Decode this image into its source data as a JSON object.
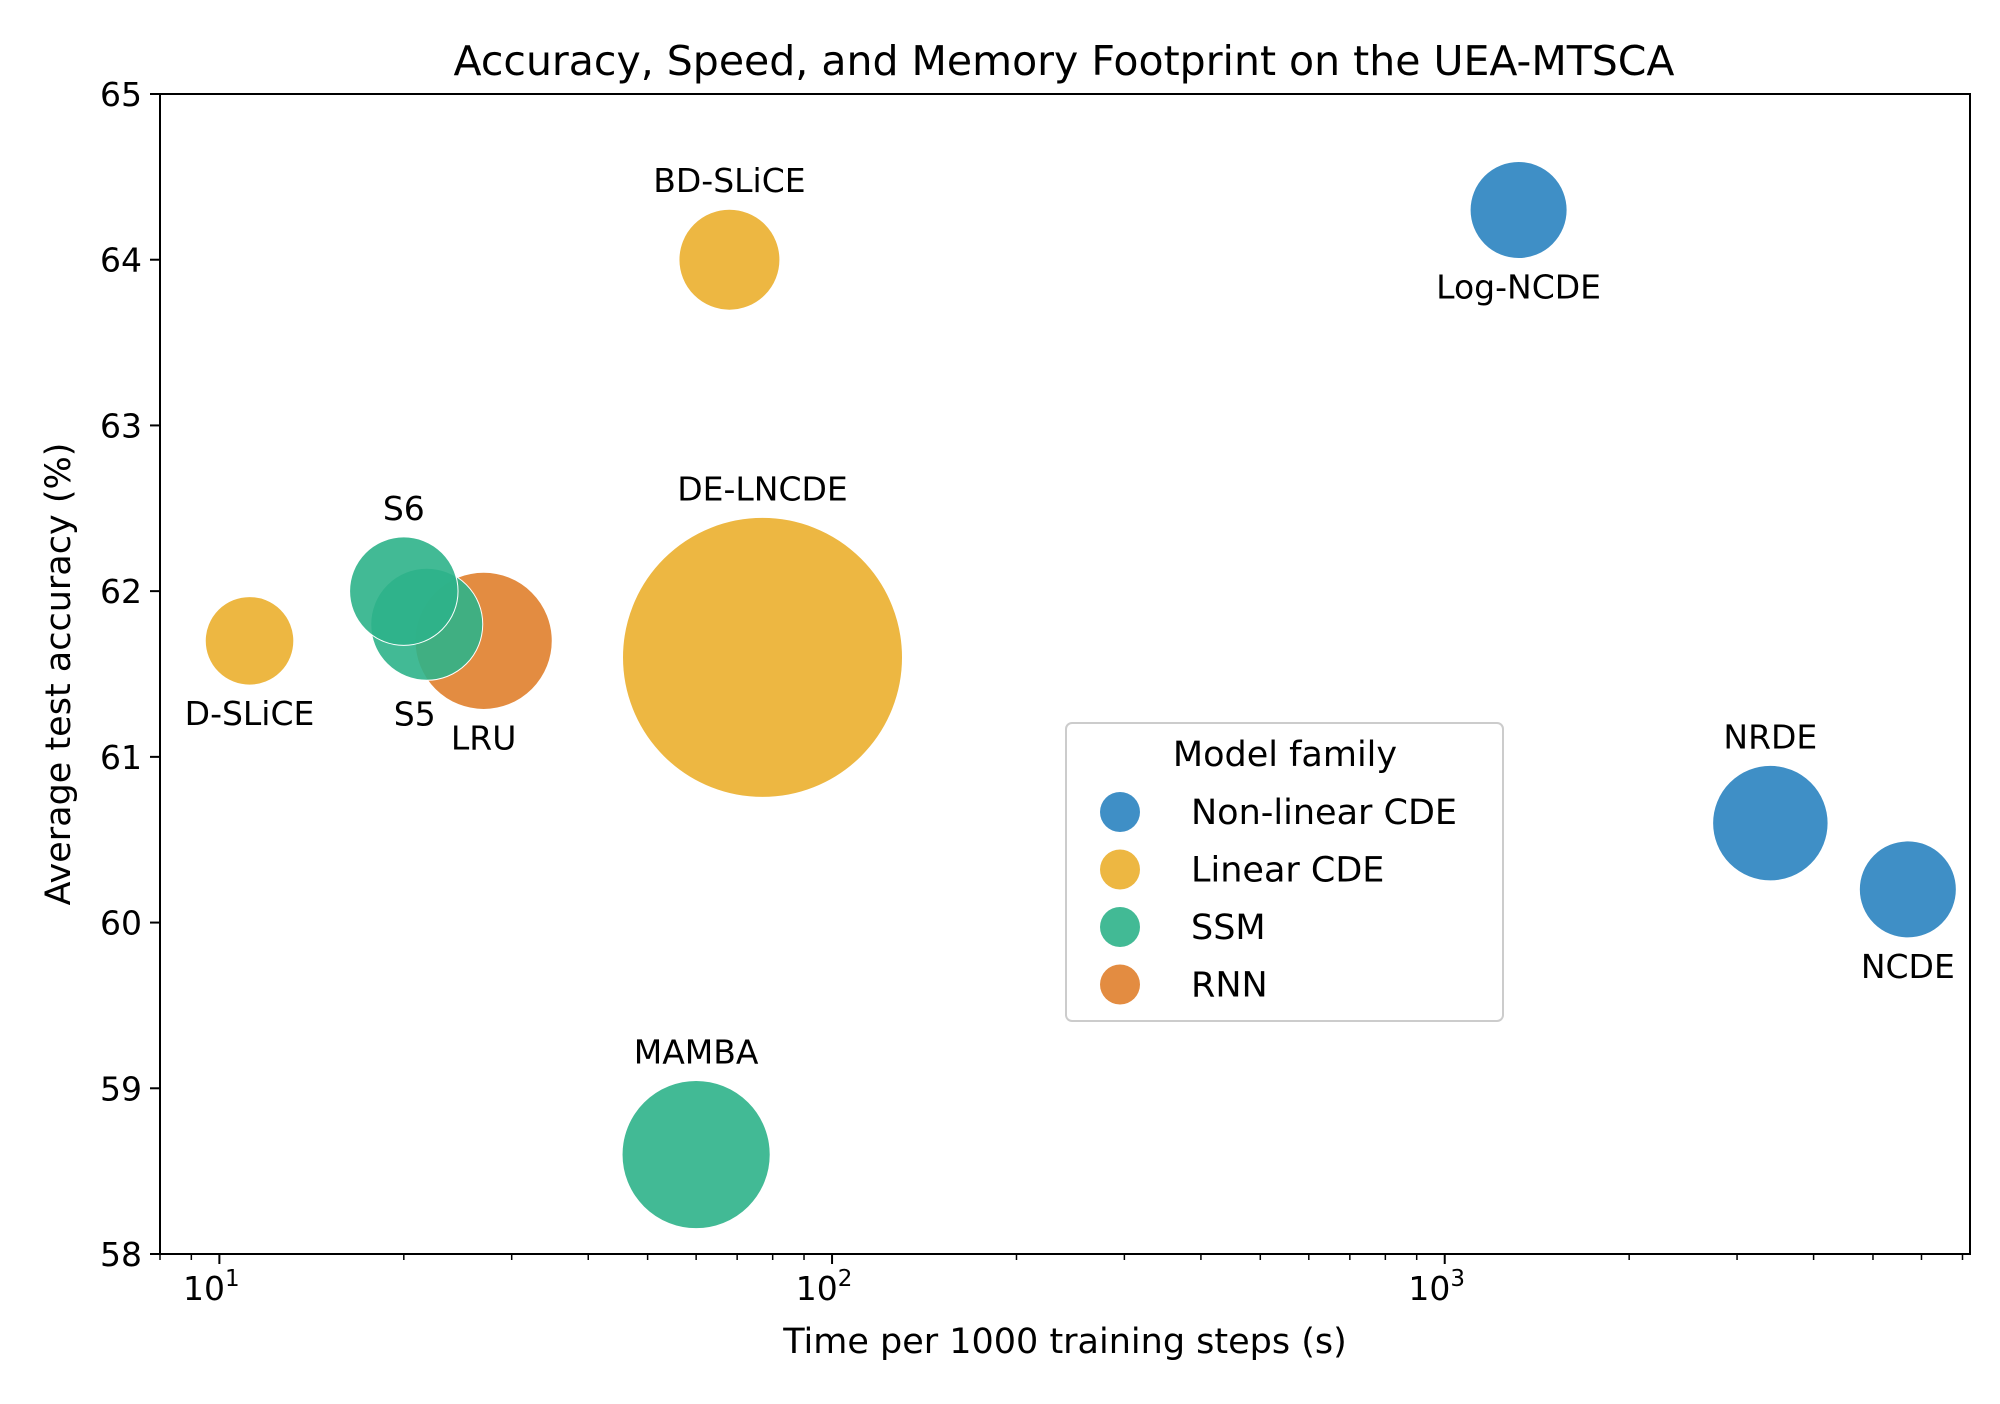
{
  "chart_data": {
    "type": "scatter",
    "title": "Accuracy, Speed, and Memory Footprint on the UEA-MTSCA",
    "xlabel": "Time per 1000 training steps (s)",
    "ylabel": "Average test accuracy (%)",
    "x_scale": "log",
    "xlim": [
      8,
      7200
    ],
    "ylim": [
      58,
      65
    ],
    "x_ticks": [
      {
        "value": 10,
        "base": "10",
        "exp": "1"
      },
      {
        "value": 100,
        "base": "10",
        "exp": "2"
      },
      {
        "value": 1000,
        "base": "10",
        "exp": "3"
      }
    ],
    "y_ticks": [
      58,
      59,
      60,
      61,
      62,
      63,
      64,
      65
    ],
    "grid": false,
    "legend": {
      "title": "Model family",
      "placement": "center-right",
      "entries": [
        {
          "label": "Non-linear CDE",
          "color": "#2a83c0"
        },
        {
          "label": "Linear CDE",
          "color": "#ebaf2e"
        },
        {
          "label": "SSM",
          "color": "#2eb38a"
        },
        {
          "label": "RNN",
          "color": "#e07f2c"
        }
      ]
    },
    "size_encoding": "memory footprint",
    "points": [
      {
        "label": "D-SLiCE",
        "family": "Linear CDE",
        "x": 11.2,
        "y": 61.7,
        "size": 0.1,
        "label_pos": "below"
      },
      {
        "label": "S6",
        "family": "SSM",
        "x": 20,
        "y": 62.0,
        "size": 0.15,
        "label_pos": "above"
      },
      {
        "label": "S5",
        "family": "SSM",
        "x": 21.8,
        "y": 61.8,
        "size": 0.16,
        "label_pos": "below-left"
      },
      {
        "label": "LRU",
        "family": "RNN",
        "x": 27,
        "y": 61.7,
        "size": 0.24,
        "label_pos": "below"
      },
      {
        "label": "BD-SLiCE",
        "family": "Linear CDE",
        "x": 68,
        "y": 64.0,
        "size": 0.13,
        "label_pos": "above"
      },
      {
        "label": "DE-LNCDE",
        "family": "Linear CDE",
        "x": 77,
        "y": 61.6,
        "size": 1.0,
        "label_pos": "above"
      },
      {
        "label": "MAMBA",
        "family": "SSM",
        "x": 60,
        "y": 58.6,
        "size": 0.28,
        "label_pos": "above"
      },
      {
        "label": "Log-NCDE",
        "family": "Non-linear CDE",
        "x": 1320,
        "y": 64.3,
        "size": 0.12,
        "label_pos": "below"
      },
      {
        "label": "NRDE",
        "family": "Non-linear CDE",
        "x": 3400,
        "y": 60.6,
        "size": 0.17,
        "label_pos": "above"
      },
      {
        "label": "NCDE",
        "family": "Non-linear CDE",
        "x": 5700,
        "y": 60.2,
        "size": 0.12,
        "label_pos": "below"
      }
    ]
  }
}
